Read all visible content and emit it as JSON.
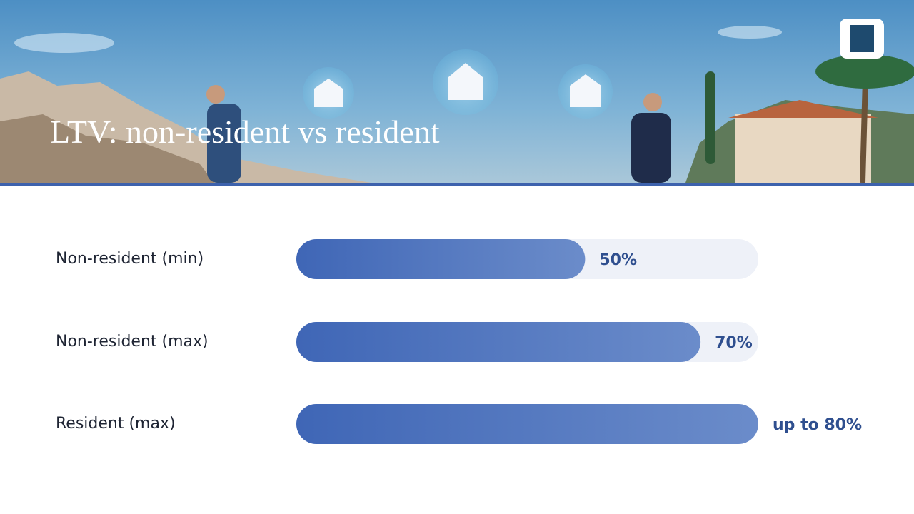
{
  "chart_data": {
    "type": "bar",
    "orientation": "horizontal",
    "title": "LTV: non-resident vs resident",
    "categories": [
      "Non-resident (min)",
      "Non-resident (max)",
      "Resident (max)"
    ],
    "values": [
      50,
      70,
      80
    ],
    "value_labels": [
      "50%",
      "70%",
      "up to 80%"
    ],
    "xlim": [
      0,
      80
    ],
    "color": "#3f66b6",
    "gradient_to": "#6b8cca",
    "track_color": "#eef1f8"
  }
}
